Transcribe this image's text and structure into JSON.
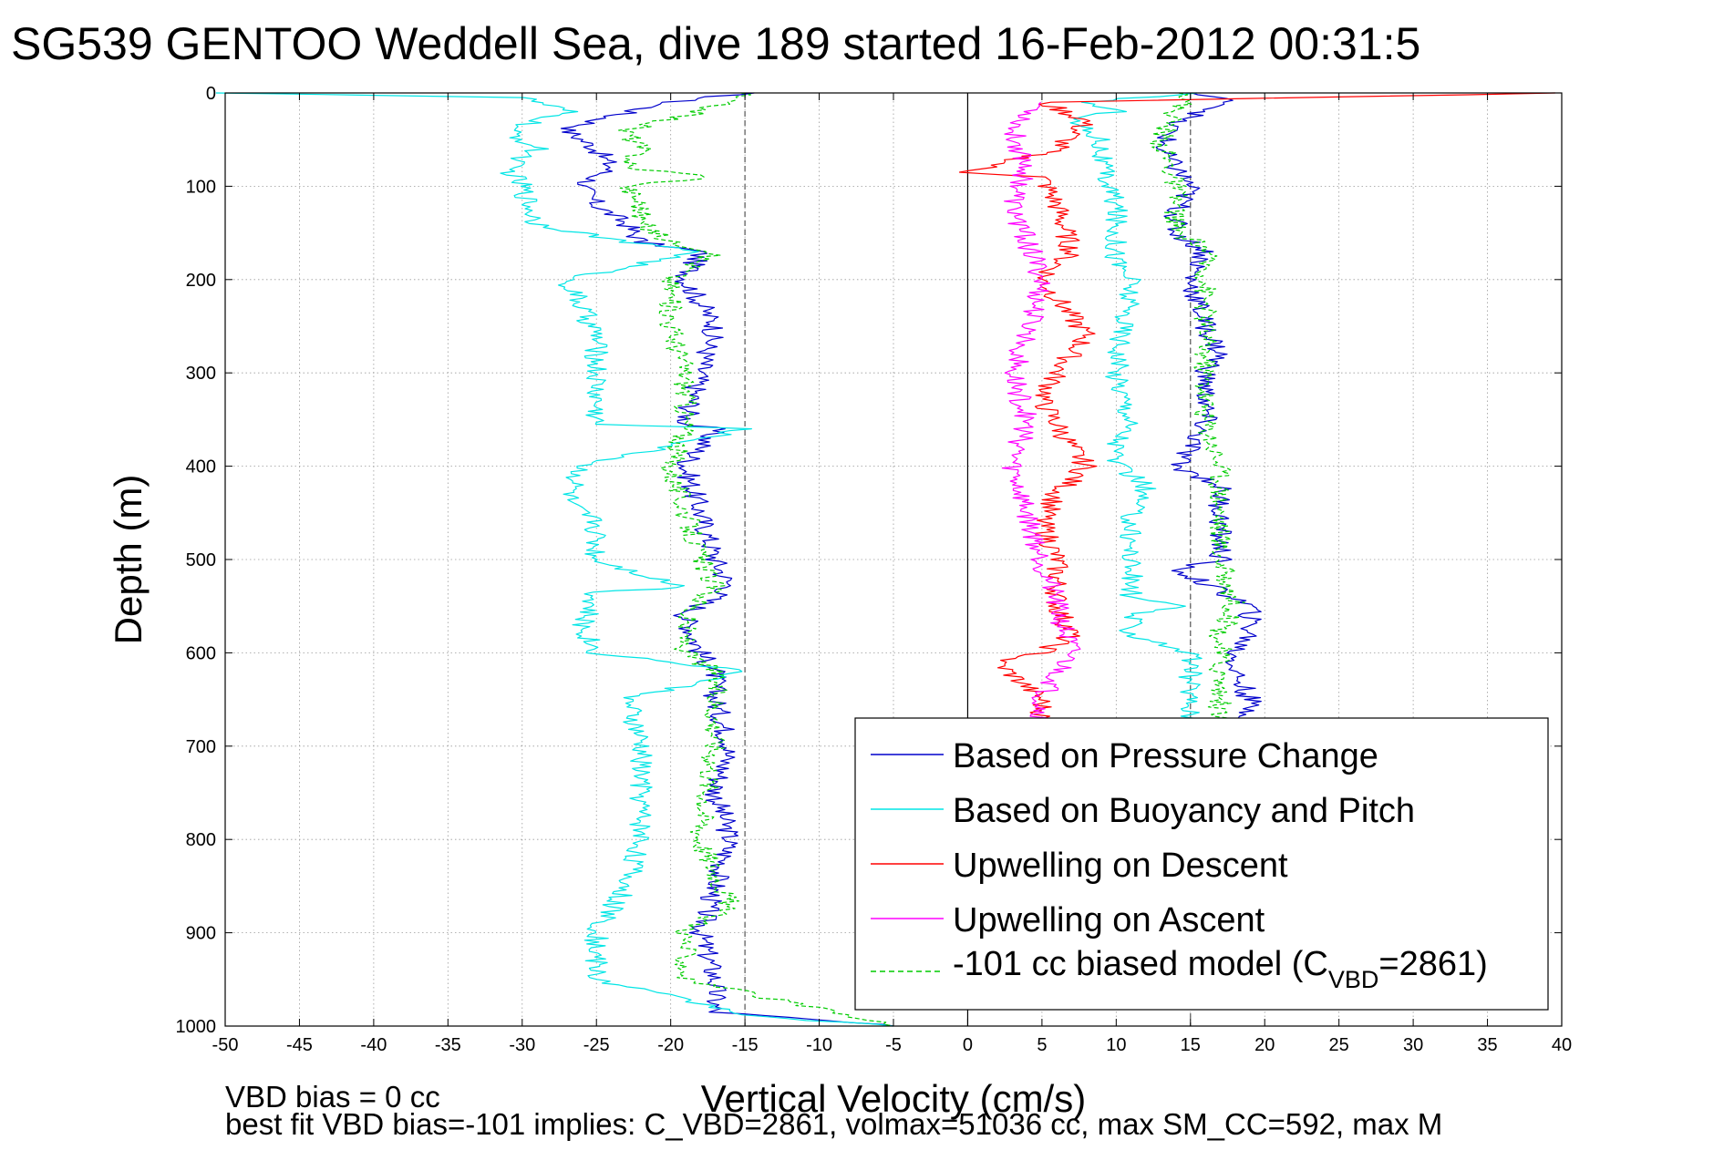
{
  "chart_data": {
    "type": "line",
    "title": "SG539 GENTOO Weddell Sea, dive 189 started 16-Feb-2012 00:31:5",
    "xlabel": "Vertical Velocity (cm/s)",
    "ylabel": "Depth (m)",
    "xlim": [
      -50,
      40
    ],
    "ylim": [
      0,
      1000
    ],
    "y_reversed": true,
    "grid": true,
    "x_ticks": [
      -50,
      -45,
      -40,
      -35,
      -30,
      -25,
      -20,
      -15,
      -10,
      -5,
      0,
      5,
      10,
      15,
      20,
      25,
      30,
      35,
      40
    ],
    "y_ticks": [
      0,
      100,
      200,
      300,
      400,
      500,
      600,
      700,
      800,
      900,
      1000
    ],
    "reference_lines": [
      {
        "x": 0,
        "style": "solid",
        "color": "#000000"
      },
      {
        "x": -15,
        "style": "dashed",
        "color": "#555555"
      },
      {
        "x": 15,
        "style": "dashed",
        "color": "#555555"
      }
    ],
    "footer_lines": [
      "VBD bias = 0 cc",
      "best fit VBD bias=-101 implies: C_VBD=2861, volmax=51036 cc, max SM_CC=592, max M"
    ],
    "legend": {
      "placement": "lower-right",
      "entries": [
        {
          "label": "Based on Pressure Change",
          "color": "#0000cc",
          "style": "solid"
        },
        {
          "label": "Based on Buoyancy and Pitch",
          "color": "#00e5e5",
          "style": "solid"
        },
        {
          "label": "Upwelling on Descent",
          "color": "#ff0000",
          "style": "solid"
        },
        {
          "label": "Upwelling on Ascent",
          "color": "#ff00ff",
          "style": "solid"
        },
        {
          "label_prefix": "-101 cc biased model (C",
          "label_sub": "VBD",
          "label_suffix": "=2861)",
          "color": "#00cc00",
          "style": "dashed"
        }
      ]
    },
    "series": [
      {
        "key": "pressure_descent",
        "color": "#0000cc",
        "style": "solid",
        "depth": [
          0,
          10,
          25,
          40,
          60,
          80,
          100,
          120,
          140,
          160,
          170,
          200,
          250,
          300,
          355,
          360,
          400,
          450,
          500,
          530,
          560,
          600,
          620,
          650,
          700,
          750,
          800,
          850,
          900,
          950,
          985,
          1000
        ],
        "velocity": [
          -15,
          -20,
          -24,
          -27,
          -25,
          -24,
          -26,
          -25,
          -23,
          -22,
          -18,
          -19,
          -17,
          -18,
          -19,
          -17,
          -19,
          -18,
          -17,
          -16,
          -19,
          -18,
          -17,
          -17,
          -16,
          -17,
          -16,
          -17,
          -18,
          -17,
          -17,
          -5
        ]
      },
      {
        "key": "buoyancy_descent",
        "color": "#00e5e5",
        "style": "solid",
        "depth": [
          0,
          5,
          20,
          40,
          60,
          80,
          100,
          140,
          160,
          170,
          200,
          260,
          300,
          355,
          360,
          400,
          440,
          460,
          500,
          530,
          535,
          570,
          600,
          620,
          650,
          700,
          800,
          850,
          900,
          950,
          990,
          1000
        ],
        "velocity": [
          -50,
          -30,
          -27,
          -31,
          -29,
          -31,
          -30,
          -29,
          -23,
          -18,
          -27,
          -25,
          -25,
          -25,
          -15,
          -26,
          -27,
          -25,
          -25,
          -19,
          -25,
          -26,
          -25,
          -15,
          -23,
          -22,
          -22,
          -23,
          -25,
          -25,
          -14,
          -5
        ]
      },
      {
        "key": "model_descent",
        "color": "#00cc00",
        "style": "dashed",
        "depth": [
          0,
          20,
          40,
          60,
          80,
          90,
          100,
          120,
          140,
          160,
          170,
          200,
          250,
          300,
          360,
          400,
          450,
          500,
          530,
          560,
          600,
          620,
          650,
          700,
          800,
          870,
          900,
          950,
          1000
        ],
        "velocity": [
          -15,
          -18,
          -23,
          -22,
          -23,
          -17,
          -23,
          -22,
          -22,
          -20,
          -17,
          -20,
          -20,
          -19,
          -19,
          -20,
          -19,
          -18,
          -17,
          -19,
          -19,
          -17,
          -17,
          -17,
          -18,
          -16,
          -19,
          -19,
          -5
        ]
      },
      {
        "key": "pressure_ascent",
        "color": "#0000cc",
        "style": "solid",
        "depth": [
          0,
          10,
          30,
          60,
          100,
          130,
          150,
          170,
          200,
          250,
          280,
          300,
          350,
          380,
          400,
          420,
          450,
          500,
          510,
          550,
          580,
          600,
          620,
          650,
          680,
          700
        ],
        "velocity": [
          15,
          18,
          14,
          13,
          15,
          14,
          14,
          16,
          15,
          16,
          17,
          16,
          16,
          15,
          14,
          17,
          17,
          17,
          14,
          19,
          19,
          18,
          18,
          19,
          19,
          19
        ]
      },
      {
        "key": "buoyancy_ascent",
        "color": "#00e5e5",
        "style": "solid",
        "depth": [
          0,
          10,
          20,
          30,
          50,
          80,
          120,
          160,
          180,
          200,
          300,
          350,
          380,
          400,
          410,
          420,
          450,
          500,
          510,
          540,
          550,
          560,
          580,
          600,
          700
        ],
        "velocity": [
          15,
          8,
          10,
          7,
          9,
          9,
          10,
          10,
          10,
          11,
          10,
          11,
          10,
          10,
          11,
          12,
          11,
          11,
          11,
          11,
          14,
          11,
          11,
          15,
          15
        ]
      },
      {
        "key": "model_ascent",
        "color": "#00cc00",
        "style": "dashed",
        "depth": [
          0,
          20,
          50,
          100,
          150,
          165,
          200,
          250,
          300,
          350,
          400,
          450,
          500,
          550,
          580,
          600,
          650,
          700
        ],
        "velocity": [
          15,
          14,
          13,
          14,
          14,
          16,
          16,
          16,
          16,
          16,
          17,
          17,
          17,
          18,
          17,
          17,
          17,
          17
        ]
      },
      {
        "key": "upwelling_descent",
        "color": "#ff0000",
        "style": "solid",
        "depth": [
          0,
          10,
          30,
          60,
          85,
          90,
          120,
          170,
          200,
          260,
          300,
          330,
          380,
          400,
          430,
          460,
          500,
          550,
          580,
          600,
          610,
          650,
          700
        ],
        "velocity": [
          40,
          5,
          8,
          6,
          0,
          5,
          6,
          7,
          5,
          8,
          6,
          5,
          7,
          8,
          6,
          5,
          6,
          6,
          7,
          5,
          2,
          5,
          5
        ]
      },
      {
        "key": "upwelling_ascent",
        "color": "#ff00ff",
        "style": "solid",
        "depth": [
          10,
          40,
          80,
          120,
          160,
          200,
          260,
          300,
          350,
          400,
          450,
          500,
          550,
          600,
          650,
          700
        ],
        "velocity": [
          5,
          3,
          4,
          3,
          4,
          5,
          4,
          3,
          4,
          3,
          4,
          5,
          6,
          7,
          5,
          5
        ]
      }
    ]
  }
}
